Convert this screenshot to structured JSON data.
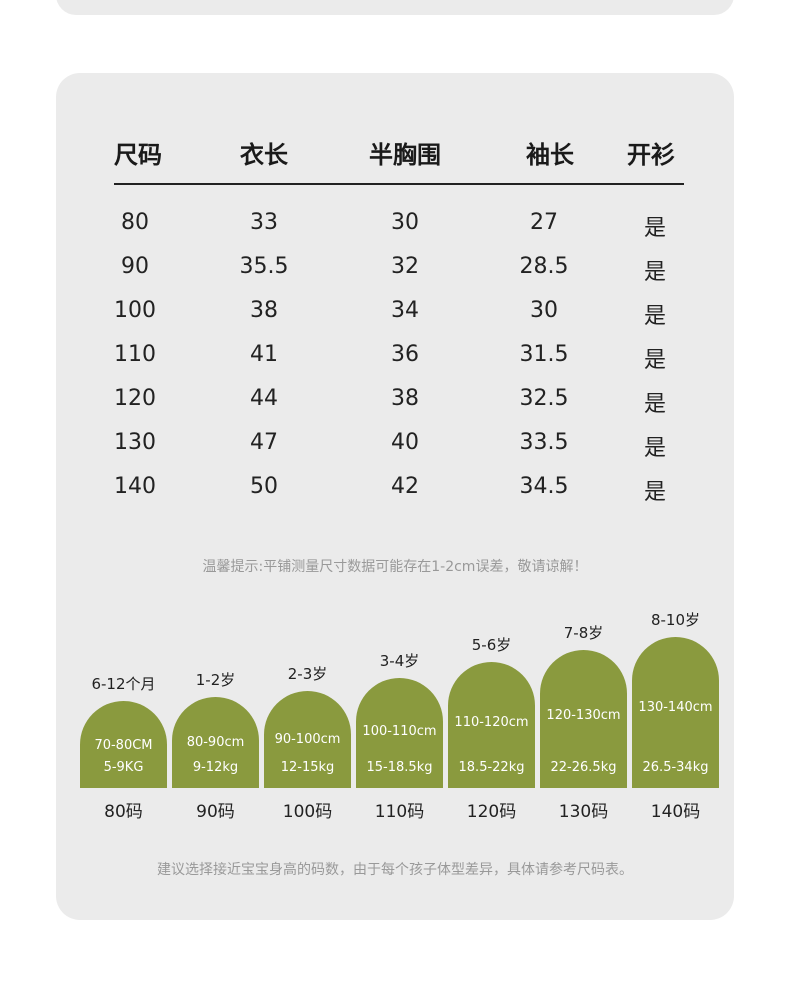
{
  "table": {
    "headers": [
      "尺码",
      "衣长",
      "半胸围",
      "袖长",
      "开衫"
    ],
    "rows": [
      [
        "80",
        "33",
        "30",
        "27",
        "是"
      ],
      [
        "90",
        "35.5",
        "32",
        "28.5",
        "是"
      ],
      [
        "100",
        "38",
        "34",
        "30",
        "是"
      ],
      [
        "110",
        "41",
        "36",
        "31.5",
        "是"
      ],
      [
        "120",
        "44",
        "38",
        "32.5",
        "是"
      ],
      [
        "130",
        "47",
        "40",
        "33.5",
        "是"
      ],
      [
        "140",
        "50",
        "42",
        "34.5",
        "是"
      ]
    ]
  },
  "note_measure": "温馨提示:平铺测量尺寸数据可能存在1-2cm误差，敬请谅解！",
  "size_guide": [
    {
      "age": "6-12个月",
      "height": "70-80CM",
      "weight": "5-9KG",
      "size": "80码"
    },
    {
      "age": "1-2岁",
      "height": "80-90cm",
      "weight": "9-12kg",
      "size": "90码"
    },
    {
      "age": "2-3岁",
      "height": "90-100cm",
      "weight": "12-15kg",
      "size": "100码"
    },
    {
      "age": "3-4岁",
      "height": "100-110cm",
      "weight": "15-18.5kg",
      "size": "110码"
    },
    {
      "age": "5-6岁",
      "height": "110-120cm",
      "weight": "18.5-22kg",
      "size": "120码"
    },
    {
      "age": "7-8岁",
      "height": "120-130cm",
      "weight": "22-26.5kg",
      "size": "130码"
    },
    {
      "age": "8-10岁",
      "height": "130-140cm",
      "weight": "26.5-34kg",
      "size": "140码"
    }
  ],
  "note_advice": "建议选择接近宝宝身高的码数，由于每个孩子体型差异，具体请参考尺码表。",
  "colors": {
    "arch": "#8a9a3e",
    "card": "#ebebeb"
  }
}
